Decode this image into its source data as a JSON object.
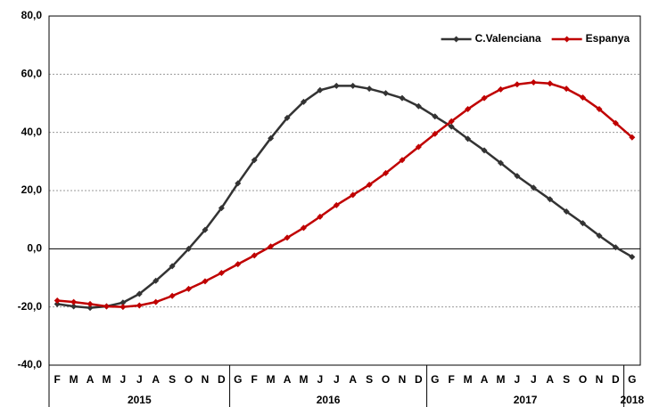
{
  "chart_data": {
    "type": "line",
    "category_groups": [
      {
        "label": "2015",
        "categories": [
          "F",
          "M",
          "A",
          "M",
          "J",
          "J",
          "A",
          "S",
          "O",
          "N",
          "D"
        ]
      },
      {
        "label": "2016",
        "categories": [
          "G",
          "F",
          "M",
          "A",
          "M",
          "J",
          "J",
          "A",
          "S",
          "O",
          "N",
          "D"
        ]
      },
      {
        "label": "2017",
        "categories": [
          "G",
          "F",
          "M",
          "A",
          "M",
          "J",
          "J",
          "A",
          "S",
          "O",
          "N",
          "D"
        ]
      },
      {
        "label": "2018",
        "categories": [
          "G"
        ]
      }
    ],
    "series": [
      {
        "name": "C.Valenciana",
        "color": "#333333",
        "values": [
          -19,
          -19.8,
          -20.3,
          -19.8,
          -18.5,
          -15.5,
          -11,
          -6,
          0,
          6.5,
          14,
          22.5,
          30.5,
          38,
          45,
          50.5,
          54.5,
          56,
          56,
          55,
          53.5,
          51.8,
          49,
          45.5,
          42,
          37.8,
          33.8,
          29.5,
          25,
          21,
          17,
          12.8,
          8.8,
          4.5,
          0.5,
          -2.8
        ]
      },
      {
        "name": "Espanya",
        "color": "#c00000",
        "values": [
          -17.8,
          -18.3,
          -19,
          -19.8,
          -20,
          -19.5,
          -18.3,
          -16.2,
          -13.8,
          -11.2,
          -8.3,
          -5.3,
          -2.3,
          0.8,
          3.8,
          7.2,
          11,
          15,
          18.5,
          22,
          26,
          30.5,
          35,
          39.5,
          43.8,
          48,
          51.8,
          54.8,
          56.5,
          57.2,
          56.8,
          55,
          52,
          48,
          43.2,
          38.3
        ]
      }
    ],
    "ylim": [
      -40,
      80
    ],
    "yticks": [
      {
        "value": -40,
        "label": "-40,0"
      },
      {
        "value": -20,
        "label": "-20,0"
      },
      {
        "value": 0,
        "label": "0,0"
      },
      {
        "value": 20,
        "label": "20,0"
      },
      {
        "value": 40,
        "label": "40,0"
      },
      {
        "value": 60,
        "label": "60,0"
      },
      {
        "value": 80,
        "label": "80,0"
      }
    ],
    "grid": true,
    "legend": "top-right"
  }
}
